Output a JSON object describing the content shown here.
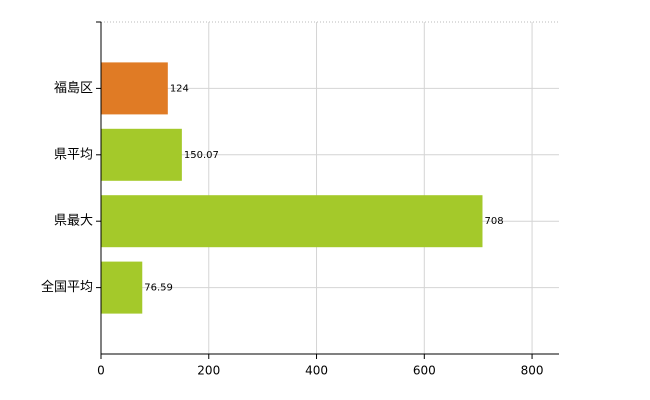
{
  "chart_data": {
    "type": "hbar",
    "categories": [
      "福島区",
      "県平均",
      "県最大",
      "全国平均"
    ],
    "values": [
      124,
      150.07,
      708,
      76.59
    ],
    "colors": [
      "#e07b25",
      "#a4c92a",
      "#a4c92a",
      "#a4c92a"
    ],
    "xlim": [
      0,
      850
    ],
    "xticks": [
      0,
      200,
      400,
      600,
      800
    ],
    "grid": true
  }
}
